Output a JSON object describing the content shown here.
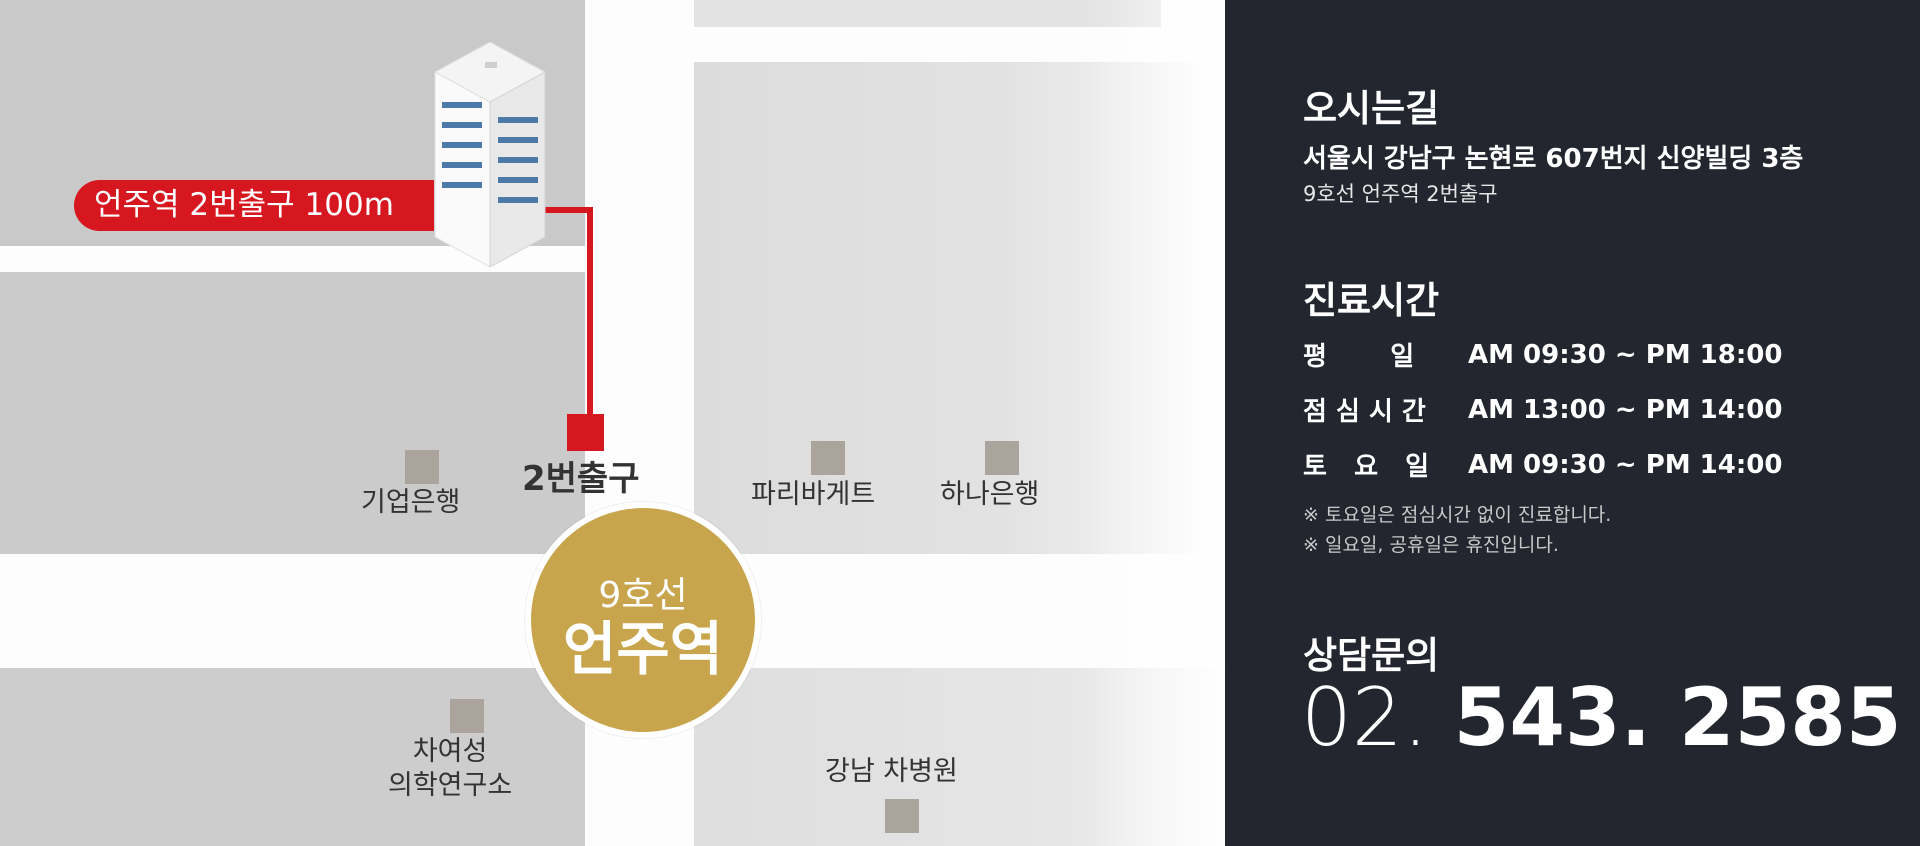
{
  "map": {
    "banner": "언주역 2번출구 100m",
    "exit_label": "2번출구",
    "station": {
      "line": "9호선",
      "name": "언주역"
    },
    "places": {
      "ibk": "기업은행",
      "paris": "파리바게트",
      "hana": "하나은행",
      "cha_institute": [
        "차여성",
        "의학연구소"
      ],
      "gangnam_cha": "강남 차병원"
    },
    "colors": {
      "accent_red": "#d7171f",
      "station_gold": "#c8a54d"
    }
  },
  "info": {
    "directions_title": "오시는길",
    "address": "서울시 강남구 논현로 607번지 신양빌딩 3층",
    "subway": "9호선 언주역 2번출구",
    "hours_title": "진료시간",
    "hours": [
      {
        "day": "평       일",
        "time": "AM 09:30 ~ PM 18:00"
      },
      {
        "day": "점 심 시 간",
        "time": "AM 13:00 ~ PM 14:00"
      },
      {
        "day": "토   요   일",
        "time": "AM 09:30 ~ PM 14:00"
      }
    ],
    "notes": [
      "※ 토요일은 점심시간 없이 진료합니다.",
      "※ 일요일, 공휴일은 휴진입니다."
    ],
    "contact_title": "상담문의",
    "phone_prefix": "02.",
    "phone_number": "543. 2585",
    "colors": {
      "panel_bg": "#23252f"
    }
  }
}
